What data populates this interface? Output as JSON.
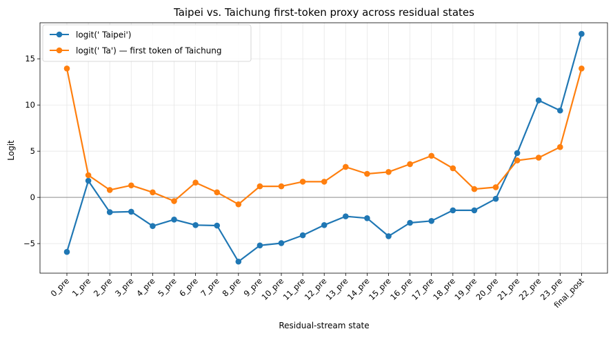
{
  "chart_data": {
    "type": "line",
    "title": "Taipei vs. Taichung first-token proxy across residual states",
    "xlabel": "Residual-stream state",
    "ylabel": "Logit",
    "categories": [
      "0_pre",
      "1_pre",
      "2_pre",
      "3_pre",
      "4_pre",
      "5_pre",
      "6_pre",
      "7_pre",
      "8_pre",
      "9_pre",
      "10_pre",
      "11_pre",
      "12_pre",
      "13_pre",
      "14_pre",
      "15_pre",
      "16_pre",
      "17_pre",
      "18_pre",
      "19_pre",
      "20_pre",
      "21_pre",
      "22_pre",
      "23_pre",
      "final_post"
    ],
    "ylim": [
      -8.2,
      18.9
    ],
    "yticks": [
      -5,
      0,
      5,
      10,
      15
    ],
    "ytick_labels": [
      "−5",
      "0",
      "5",
      "10",
      "15"
    ],
    "grid": true,
    "legend_position": "top-left",
    "series": [
      {
        "name": "logit(' Taipei')",
        "color": "#1f77b4",
        "values": [
          -5.9,
          1.8,
          -1.6,
          -1.55,
          -3.1,
          -2.4,
          -3.0,
          -3.05,
          -6.95,
          -5.2,
          -4.95,
          -4.1,
          -3.0,
          -2.05,
          -2.25,
          -4.2,
          -2.75,
          -2.55,
          -1.4,
          -1.4,
          -0.15,
          4.8,
          10.5,
          9.4,
          17.7
        ]
      },
      {
        "name": "logit(' Ta') — first token of Taichung",
        "color": "#ff7f0e",
        "values": [
          13.95,
          2.4,
          0.8,
          1.3,
          0.55,
          -0.4,
          1.6,
          0.55,
          -0.75,
          1.2,
          1.2,
          1.7,
          1.7,
          3.3,
          2.55,
          2.75,
          3.6,
          4.5,
          3.15,
          0.9,
          1.1,
          4.0,
          4.3,
          5.45,
          13.95
        ]
      }
    ]
  }
}
